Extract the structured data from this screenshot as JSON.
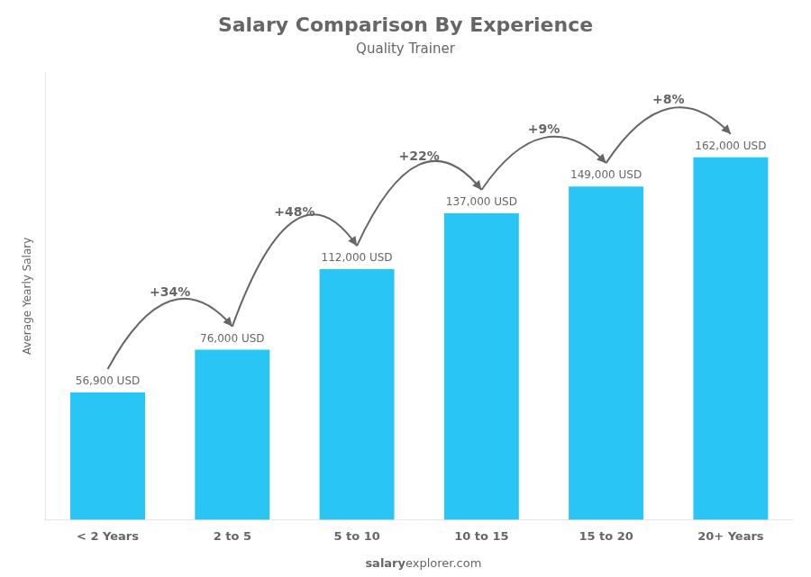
{
  "chart_data": {
    "type": "bar",
    "title": "Salary Comparison By Experience",
    "subtitle": "Quality Trainer",
    "categories": [
      "< 2 Years",
      "2 to 5",
      "5 to 10",
      "10 to 15",
      "15 to 20",
      "20+ Years"
    ],
    "values": [
      56900,
      76000,
      112000,
      137000,
      149000,
      162000
    ],
    "value_labels": [
      "56,900 USD",
      "76,000 USD",
      "112,000 USD",
      "137,000 USD",
      "149,000 USD",
      "162,000 USD"
    ],
    "data_labels": true,
    "color": "#29C5F5",
    "ylabel": "Average Yearly Salary",
    "ylim": [
      0,
      200000
    ],
    "grid": false,
    "tick_labels": "x",
    "annotations": [
      "+34%",
      "+48%",
      "+22%",
      "+9%",
      "+8%"
    ],
    "watermark": [
      "salary",
      "explorer.com"
    ]
  }
}
